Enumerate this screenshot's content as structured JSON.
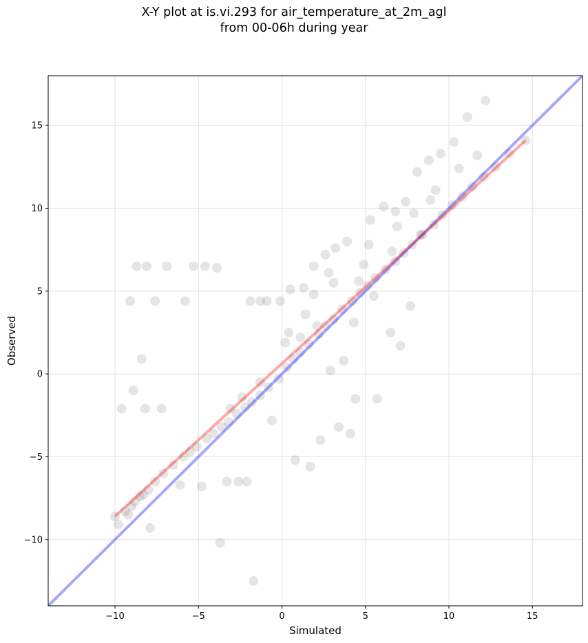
{
  "chart_data": {
    "type": "scatter",
    "title": "X-Y plot at is.vi.293 for air_temperature_at_2m_agl",
    "subtitle": "from 00-06h during year",
    "xlabel": "Simulated",
    "ylabel": "Observed",
    "xlim": [
      -14,
      18
    ],
    "ylim": [
      -14,
      18
    ],
    "xticks": [
      -10,
      -5,
      0,
      5,
      10,
      15
    ],
    "yticks": [
      -10,
      -5,
      0,
      5,
      10,
      15
    ],
    "xtick_labels": [
      "−10",
      "−5",
      "0",
      "5",
      "10",
      "15"
    ],
    "ytick_labels": [
      "−10",
      "−5",
      "0",
      "5",
      "10",
      "15"
    ],
    "grid": true,
    "point_color": "#000000",
    "identity_line_color": "#0000ff",
    "fit_line_color": "#ff0000",
    "fit_line": {
      "x": [
        -10,
        14.6
      ],
      "y": [
        -8.6,
        14.1
      ]
    },
    "identity_line": {
      "x": [
        -14,
        18
      ],
      "y": [
        -14,
        18
      ]
    },
    "series": [
      {
        "x": [
          -10,
          -9.8,
          -9.4,
          -9.2,
          -9,
          -8.8,
          -8.5,
          -8.3,
          -8,
          -7.6,
          -7.1,
          -6.5,
          -5.9,
          -5.5,
          -5.1,
          -4.5,
          -4.1,
          -3.6,
          -3.2,
          -2.7,
          -2.2,
          -1.8,
          -1.3,
          -0.8,
          -0.2,
          0.3,
          0.7,
          1.1,
          1.6,
          2.2,
          2.6,
          3.1,
          3.6,
          4.2,
          4.7,
          5.1,
          5.6,
          6.2,
          6.8,
          7.3,
          7.8,
          8.4,
          9.1,
          9.6,
          10.2,
          10.8,
          11.4,
          12.1,
          12.8,
          13.6,
          14.6,
          -8.7,
          -8.1,
          -9.1,
          -7.6,
          -6.9,
          -5.8,
          -5.3,
          -4.6,
          -3.9,
          -3.1,
          -2.4,
          -1.9,
          -1.3,
          -0.9,
          -0.1,
          0.5,
          1.3,
          1.9,
          2.6,
          3.2,
          3.9,
          4.6,
          5.3,
          6.1,
          6.8,
          7.4,
          8.1,
          8.8,
          9.5,
          10.3,
          11.1,
          12.2,
          -3.3,
          -2.6,
          -2.1,
          -1.7,
          -3.7,
          -4.8,
          -6.1,
          -8.2,
          -7.2,
          -9.6,
          -8.9,
          -8.4,
          -7.9,
          -1.3,
          -0.6,
          0.8,
          1.7,
          2.3,
          3.4,
          4.1,
          4.4,
          5.7,
          6.5,
          7.1,
          7.7,
          2.9,
          3.7,
          1.4,
          0.2,
          1.1,
          4.9,
          5.5,
          6.6,
          8.3,
          3.1,
          2.1,
          4.3,
          1.9,
          0.4,
          2.8,
          5.2,
          6.9,
          9.2,
          10.6,
          11.7,
          8.9,
          7.9
        ],
        "y": [
          -8.6,
          -9.1,
          -8.3,
          -8.5,
          -8,
          -7.7,
          -7.4,
          -7.3,
          -7,
          -6.5,
          -6,
          -5.5,
          -5,
          -4.7,
          -4.4,
          -3.9,
          -3.6,
          -3.2,
          -2.9,
          -2.4,
          -2,
          -1.7,
          -1.3,
          -0.8,
          -0.3,
          0.4,
          0.9,
          1.3,
          1.8,
          2.4,
          2.9,
          3.3,
          3.9,
          4.4,
          4.9,
          5.3,
          5.8,
          6.3,
          6.8,
          7.3,
          7.8,
          8.4,
          9,
          9.6,
          10.2,
          10.7,
          11.3,
          11.9,
          12.5,
          13.3,
          14.1,
          6.5,
          6.5,
          4.4,
          4.4,
          6.5,
          4.4,
          6.5,
          6.5,
          6.4,
          -2.1,
          -1.4,
          4.4,
          4.4,
          4.4,
          4.4,
          5.1,
          5.2,
          6.5,
          7.2,
          7.6,
          8,
          5.6,
          9.3,
          10.1,
          9.8,
          10.4,
          12.2,
          12.9,
          13.3,
          14,
          15.5,
          16.5,
          -6.5,
          -6.5,
          -6.5,
          -12.5,
          -10.2,
          -6.8,
          -6.7,
          -2.1,
          -2.1,
          -2.1,
          -1,
          0.9,
          -9.3,
          -0.5,
          -2.8,
          -5.2,
          -5.6,
          -4,
          -3.2,
          -3.6,
          -1.5,
          -1.5,
          2.5,
          1.7,
          4.1,
          0.2,
          0.8,
          3.6,
          1.9,
          2.2,
          6.6,
          4.7,
          7.4,
          8.4,
          5.5,
          2.9,
          3.1,
          4.8,
          2.5,
          6.1,
          7.8,
          8.9,
          11.1,
          12.4,
          13.2,
          10.5,
          9.7
        ]
      }
    ]
  }
}
